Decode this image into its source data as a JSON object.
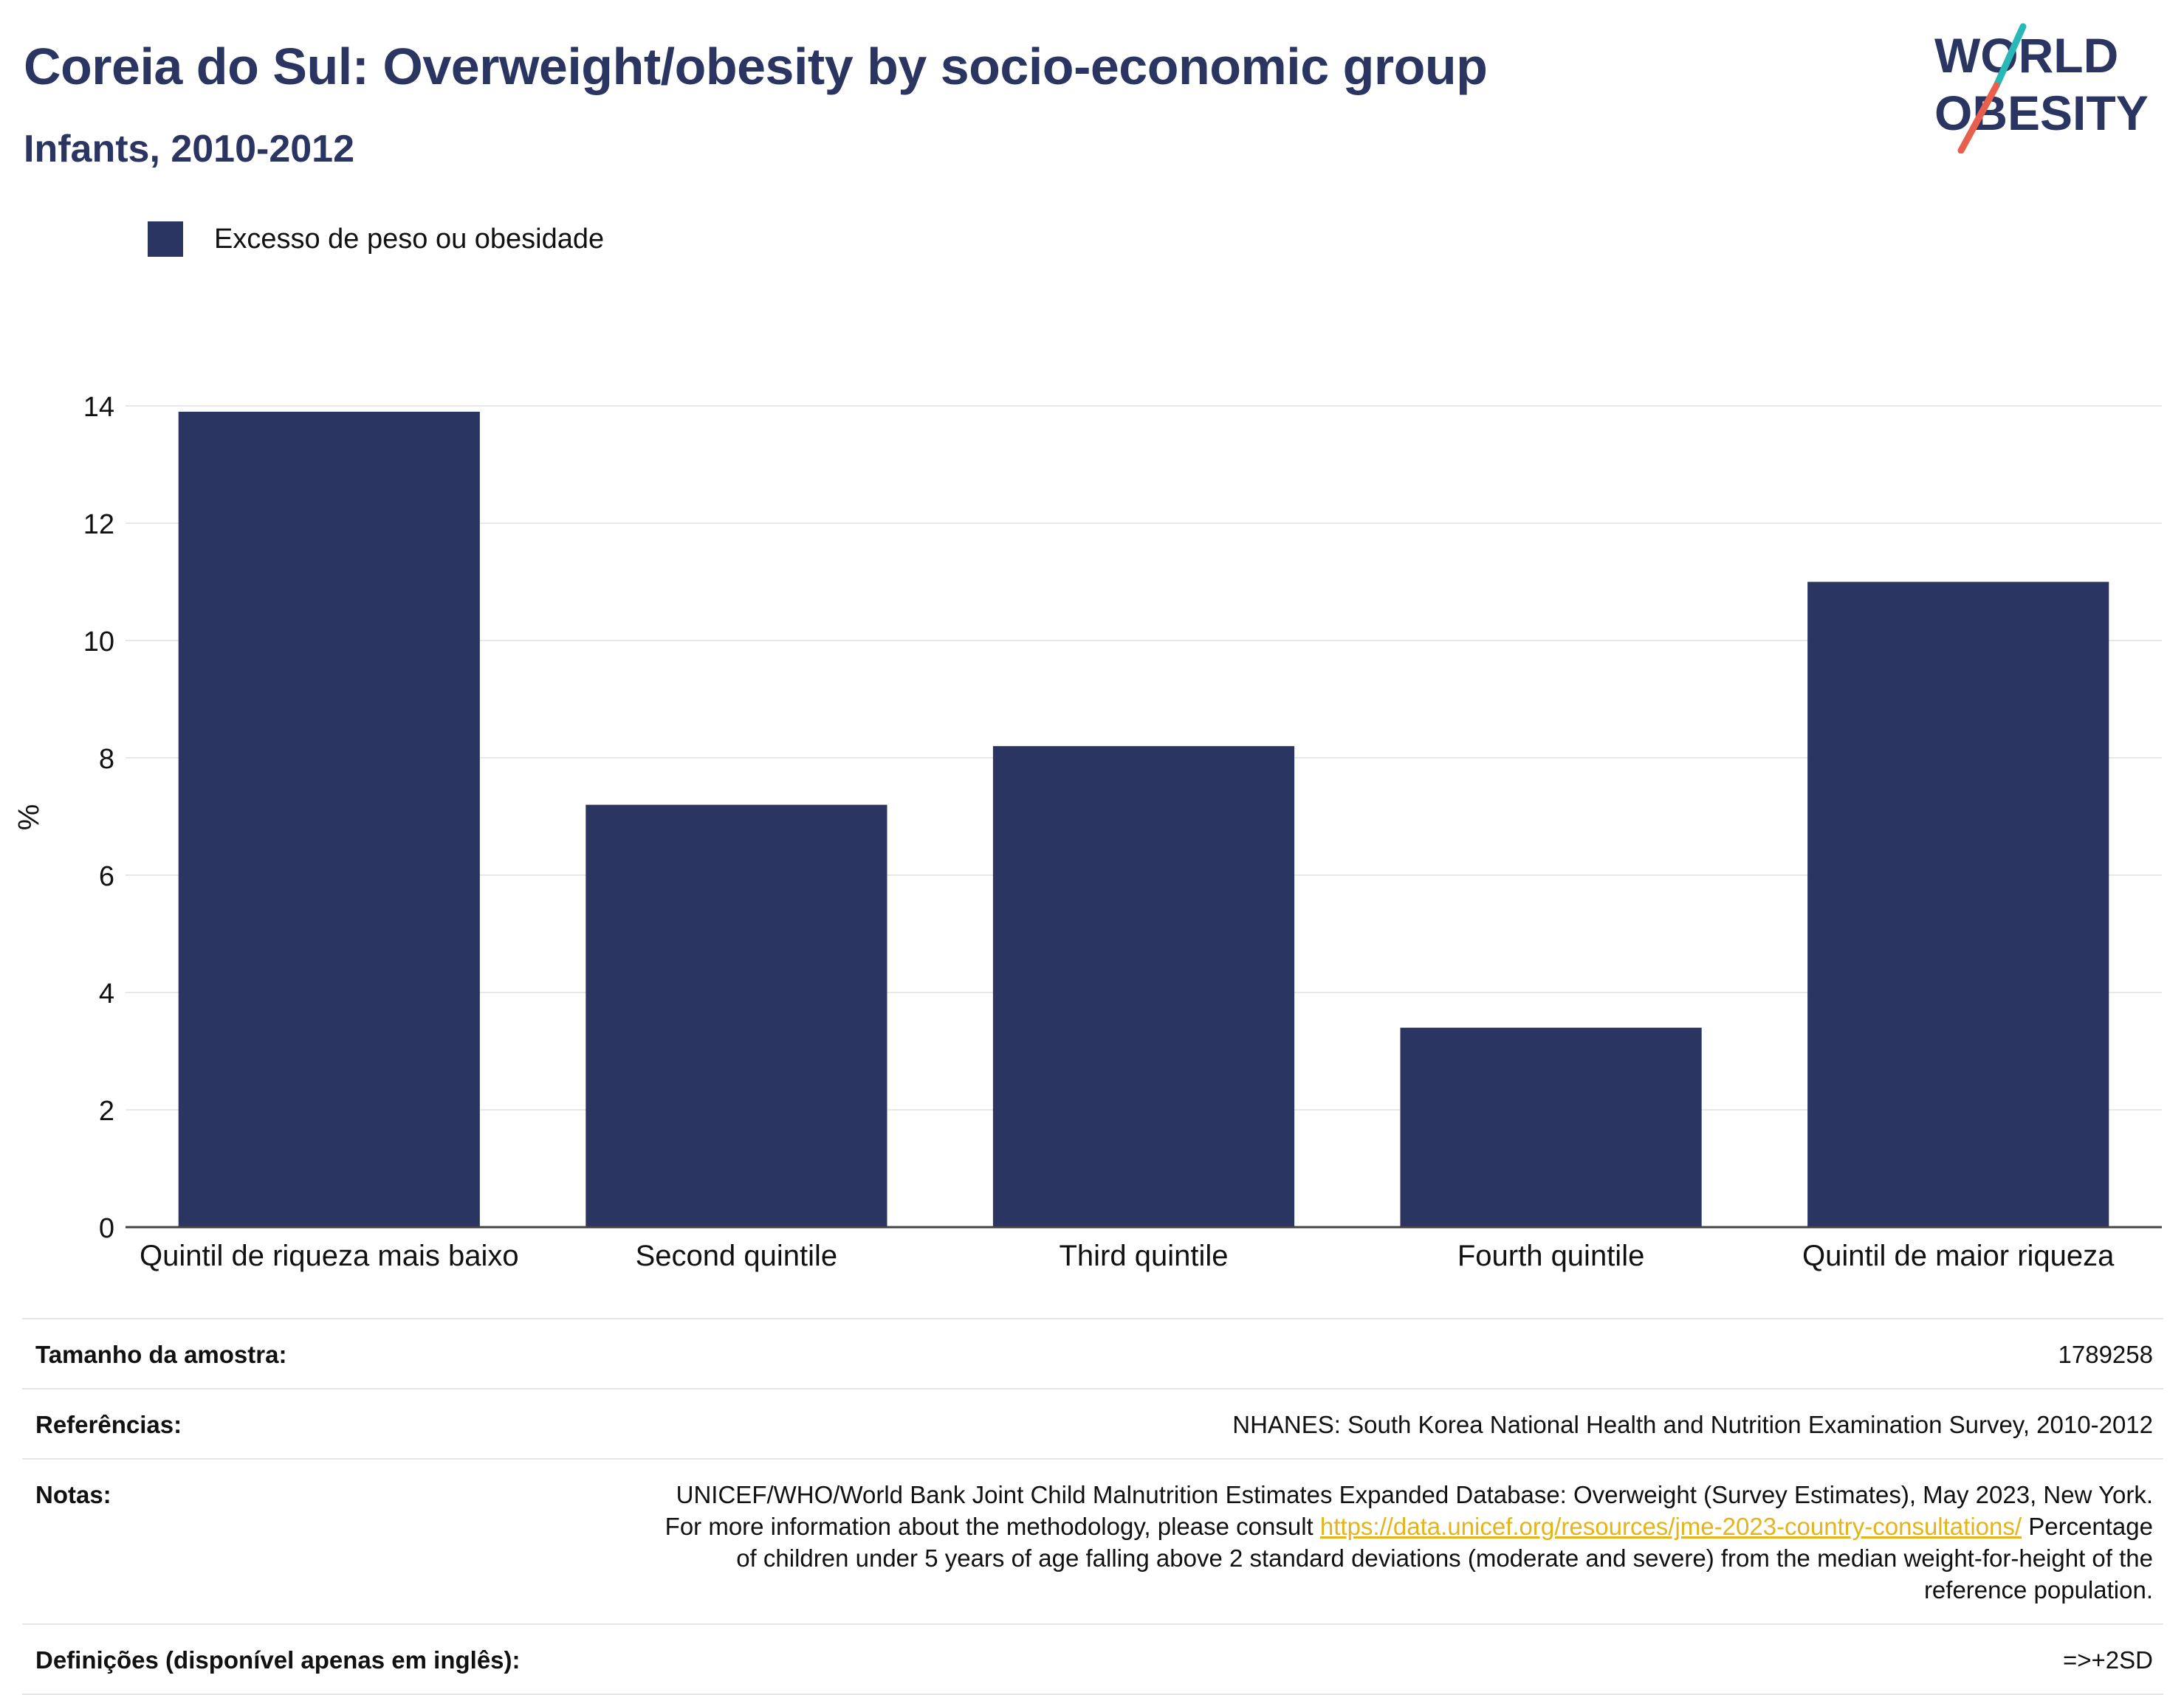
{
  "header": {
    "title": "Coreia do Sul: Overweight/obesity by socio-economic group",
    "subtitle": "Infants, 2010-2012"
  },
  "logo": {
    "line1": "WORLD",
    "line2": "OBESITY",
    "colors": {
      "text": "#2b3561",
      "slash_top": "#2ab7b7",
      "slash_bottom": "#e8604c"
    }
  },
  "legend": {
    "label": "Excesso de peso ou obesidade",
    "color": "#2b3561"
  },
  "chart_data": {
    "type": "bar",
    "categories": [
      "Quintil de riqueza mais baixo",
      "Second quintile",
      "Third quintile",
      "Fourth quintile",
      "Quintil de maior riqueza"
    ],
    "series": [
      {
        "name": "Excesso de peso ou obesidade",
        "values": [
          13.9,
          7.2,
          8.2,
          3.4,
          11.0
        ],
        "color": "#2b3561"
      }
    ],
    "ylabel": "%",
    "ylim": [
      0,
      14
    ],
    "yticks": [
      0,
      2,
      4,
      6,
      8,
      10,
      12,
      14
    ],
    "grid": true,
    "legend_position": "top-left"
  },
  "info": {
    "sample_size": {
      "label": "Tamanho da amostra:",
      "value": "1789258"
    },
    "references": {
      "label": "Referências:",
      "value": "NHANES: South Korea National Health and Nutrition Examination Survey, 2010-2012"
    },
    "notes": {
      "label": "Notas:",
      "text_before": "UNICEF/WHO/World Bank Joint Child Malnutrition Estimates Expanded Database: Overweight (Survey Estimates), May 2023, New York. For more information about the methodology, please consult ",
      "link": "https://data.unicef.org/resources/jme-2023-country-consultations/",
      "text_after": " Percentage of children under 5 years of age falling above 2 standard deviations (moderate and severe) from the median weight-for-height of the reference population."
    },
    "definitions": {
      "label": "Definições (disponível apenas em inglês):",
      "value": "=>+2SD"
    }
  }
}
